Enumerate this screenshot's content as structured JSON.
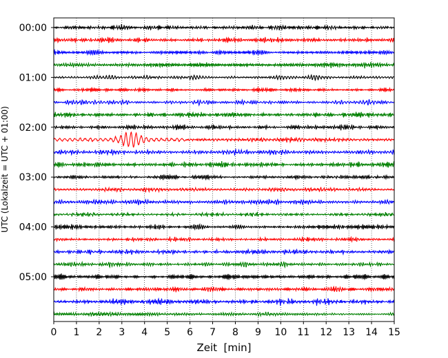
{
  "chart_data": {
    "type": "line",
    "title": "",
    "xlabel": "Zeit  [min]",
    "ylabel": "UTC (Lokalzeit = UTC + 01:00)",
    "xlim": [
      0,
      15
    ],
    "x_ticks": [
      0,
      1,
      2,
      3,
      4,
      5,
      6,
      7,
      8,
      9,
      10,
      11,
      12,
      13,
      14,
      15
    ],
    "y_tick_labels": [
      "00:00",
      "01:00",
      "02:00",
      "03:00",
      "04:00",
      "05:00"
    ],
    "y_tick_row_index": [
      0,
      4,
      8,
      12,
      16,
      20
    ],
    "minutes_per_row": 15,
    "row_count": 24,
    "color_cycle": [
      "#000000",
      "#ff0000",
      "#0000ff",
      "#008000"
    ],
    "grid": {
      "x": true,
      "y": false,
      "style": "dotted"
    },
    "events": [
      {
        "row_index": 9,
        "start_min": 0.0,
        "end_min": 5.8,
        "peak_min": 3.4,
        "description": "erhöhte Amplitude"
      }
    ],
    "series": [
      {
        "start_time": "00:00",
        "color": "#000000"
      },
      {
        "start_time": "00:15",
        "color": "#ff0000"
      },
      {
        "start_time": "00:30",
        "color": "#0000ff"
      },
      {
        "start_time": "00:45",
        "color": "#008000"
      },
      {
        "start_time": "01:00",
        "color": "#000000"
      },
      {
        "start_time": "01:15",
        "color": "#ff0000"
      },
      {
        "start_time": "01:30",
        "color": "#0000ff"
      },
      {
        "start_time": "01:45",
        "color": "#008000"
      },
      {
        "start_time": "02:00",
        "color": "#000000"
      },
      {
        "start_time": "02:15",
        "color": "#ff0000"
      },
      {
        "start_time": "02:30",
        "color": "#0000ff"
      },
      {
        "start_time": "02:45",
        "color": "#008000"
      },
      {
        "start_time": "03:00",
        "color": "#000000"
      },
      {
        "start_time": "03:15",
        "color": "#ff0000"
      },
      {
        "start_time": "03:30",
        "color": "#0000ff"
      },
      {
        "start_time": "03:45",
        "color": "#008000"
      },
      {
        "start_time": "04:00",
        "color": "#000000"
      },
      {
        "start_time": "04:15",
        "color": "#ff0000"
      },
      {
        "start_time": "04:30",
        "color": "#0000ff"
      },
      {
        "start_time": "04:45",
        "color": "#008000"
      },
      {
        "start_time": "05:00",
        "color": "#000000"
      },
      {
        "start_time": "05:15",
        "color": "#ff0000"
      },
      {
        "start_time": "05:30",
        "color": "#0000ff"
      },
      {
        "start_time": "05:45",
        "color": "#008000"
      }
    ]
  }
}
